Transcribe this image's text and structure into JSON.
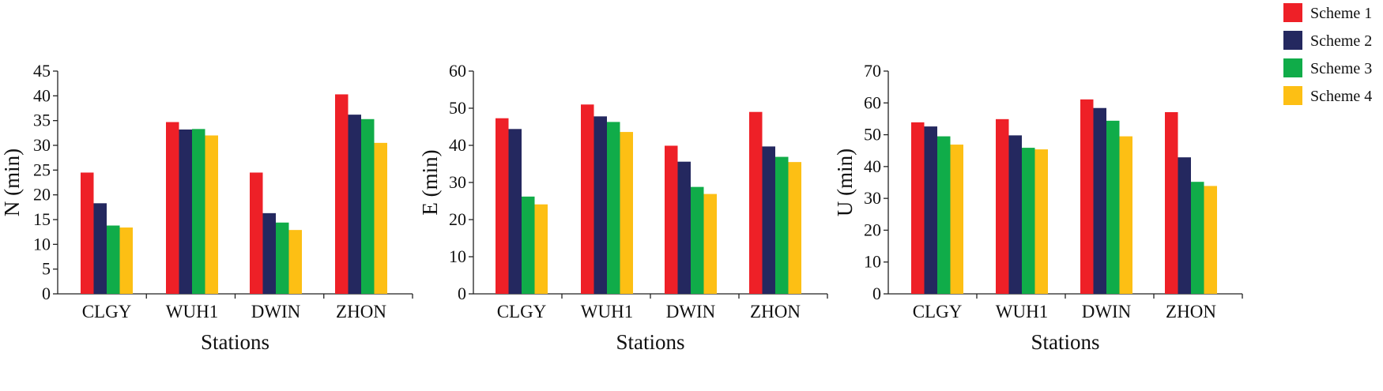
{
  "legend": {
    "items": [
      {
        "label": "Scheme 1",
        "color": "#ee2027"
      },
      {
        "label": "Scheme 2",
        "color": "#24285f"
      },
      {
        "label": "Scheme 3",
        "color": "#10ac49"
      },
      {
        "label": "Scheme 4",
        "color": "#fdbf14"
      }
    ]
  },
  "chart_data": [
    {
      "type": "bar",
      "xlabel": "Stations",
      "ylabel": "N (min)",
      "ylim": [
        0,
        45
      ],
      "yticks": [
        0,
        5,
        10,
        15,
        20,
        25,
        30,
        35,
        40,
        45
      ],
      "categories": [
        "CLGY",
        "WUH1",
        "DWIN",
        "ZHON"
      ],
      "series": [
        {
          "name": "Scheme 1",
          "values": [
            24.5,
            34.7,
            24.5,
            40.3
          ]
        },
        {
          "name": "Scheme 2",
          "values": [
            18.3,
            33.2,
            16.3,
            36.2
          ]
        },
        {
          "name": "Scheme 3",
          "values": [
            13.8,
            33.3,
            14.4,
            35.3
          ]
        },
        {
          "name": "Scheme 4",
          "values": [
            13.4,
            32.0,
            12.9,
            30.5
          ]
        }
      ]
    },
    {
      "type": "bar",
      "xlabel": "Stations",
      "ylabel": "E (min)",
      "ylim": [
        0,
        60
      ],
      "yticks": [
        0,
        10,
        20,
        30,
        40,
        50,
        60
      ],
      "categories": [
        "CLGY",
        "WUH1",
        "DWIN",
        "ZHON"
      ],
      "series": [
        {
          "name": "Scheme 1",
          "values": [
            47.3,
            51.0,
            39.9,
            49.0
          ]
        },
        {
          "name": "Scheme 2",
          "values": [
            44.4,
            47.8,
            35.6,
            39.7
          ]
        },
        {
          "name": "Scheme 3",
          "values": [
            26.2,
            46.3,
            28.8,
            36.9
          ]
        },
        {
          "name": "Scheme 4",
          "values": [
            24.1,
            43.6,
            26.9,
            35.5
          ]
        }
      ]
    },
    {
      "type": "bar",
      "xlabel": "Stations",
      "ylabel": "U (min)",
      "ylim": [
        0,
        70
      ],
      "yticks": [
        0,
        10,
        20,
        30,
        40,
        50,
        60,
        70
      ],
      "categories": [
        "CLGY",
        "WUH1",
        "DWIN",
        "ZHON"
      ],
      "series": [
        {
          "name": "Scheme 1",
          "values": [
            53.9,
            54.9,
            61.1,
            57.1
          ]
        },
        {
          "name": "Scheme 2",
          "values": [
            52.6,
            49.8,
            58.4,
            42.9
          ]
        },
        {
          "name": "Scheme 3",
          "values": [
            49.5,
            45.9,
            54.4,
            35.2
          ]
        },
        {
          "name": "Scheme 4",
          "values": [
            46.9,
            45.4,
            49.5,
            33.9
          ]
        }
      ]
    }
  ]
}
